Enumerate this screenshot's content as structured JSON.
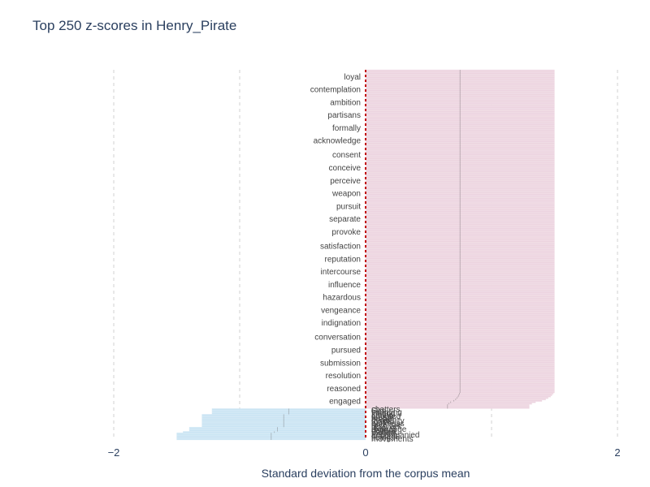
{
  "chart_data": {
    "type": "bar",
    "orientation": "horizontal",
    "title": "Top 250 z-scores in Henry_Pirate",
    "xlabel": "Standard deviation from the corpus mean",
    "ylabel": "",
    "xlim": [
      -2,
      2
    ],
    "xticks": [
      -2,
      0,
      2
    ],
    "xtick_labels": [
      "−2",
      "0",
      "2"
    ],
    "grid": true,
    "legend": "none",
    "colors": {
      "positive": "#ecd3df",
      "negative": "#c8e3f3",
      "zero_line": "#c00000",
      "text": "#2a3f5f",
      "grid": "#d0d0d0"
    },
    "positive_bars": {
      "count": 228,
      "top_labels": [
        "loyal",
        "contemplation",
        "ambition",
        "partisans",
        "formally",
        "acknowledge",
        "consent",
        "conceive",
        "perceive",
        "weapon",
        "pursuit",
        "separate",
        "provoke",
        "satisfaction",
        "reputation",
        "intercourse",
        "influence",
        "hazardous",
        "vengeance",
        "indignation",
        "conversation",
        "pursued",
        "submission",
        "resolution",
        "reasoned",
        "engaged"
      ],
      "values": [
        1.5,
        1.5,
        1.5,
        1.5,
        1.5,
        1.5,
        1.5,
        1.5,
        1.5,
        1.5,
        1.5,
        1.5,
        1.5,
        1.5,
        1.5,
        1.5,
        1.5,
        1.5,
        1.5,
        1.5,
        1.5,
        1.5,
        1.5,
        1.5,
        1.5,
        1.5,
        1.5,
        1.5,
        1.5,
        1.5,
        1.5,
        1.5,
        1.5,
        1.5,
        1.5,
        1.5,
        1.5,
        1.5,
        1.5,
        1.5,
        1.5,
        1.5,
        1.5,
        1.5,
        1.5,
        1.5,
        1.5,
        1.5,
        1.5,
        1.5,
        1.5,
        1.5,
        1.5,
        1.5,
        1.5,
        1.5,
        1.5,
        1.5,
        1.5,
        1.5,
        1.5,
        1.5,
        1.5,
        1.5,
        1.5,
        1.5,
        1.5,
        1.5,
        1.5,
        1.5,
        1.5,
        1.5,
        1.5,
        1.5,
        1.5,
        1.5,
        1.5,
        1.5,
        1.5,
        1.5,
        1.5,
        1.5,
        1.5,
        1.5,
        1.5,
        1.5,
        1.5,
        1.5,
        1.5,
        1.5,
        1.5,
        1.5,
        1.5,
        1.5,
        1.5,
        1.5,
        1.5,
        1.5,
        1.5,
        1.5,
        1.5,
        1.5,
        1.5,
        1.5,
        1.5,
        1.5,
        1.5,
        1.5,
        1.5,
        1.5,
        1.5,
        1.5,
        1.5,
        1.5,
        1.5,
        1.5,
        1.5,
        1.5,
        1.5,
        1.5,
        1.5,
        1.5,
        1.5,
        1.5,
        1.5,
        1.5,
        1.5,
        1.5,
        1.5,
        1.5,
        1.5,
        1.5,
        1.5,
        1.5,
        1.5,
        1.5,
        1.5,
        1.5,
        1.5,
        1.5,
        1.5,
        1.5,
        1.5,
        1.5,
        1.5,
        1.5,
        1.5,
        1.5,
        1.5,
        1.5,
        1.5,
        1.5,
        1.5,
        1.5,
        1.5,
        1.5,
        1.5,
        1.5,
        1.5,
        1.5,
        1.5,
        1.5,
        1.5,
        1.5,
        1.5,
        1.5,
        1.5,
        1.5,
        1.5,
        1.5,
        1.5,
        1.5,
        1.5,
        1.5,
        1.5,
        1.5,
        1.5,
        1.5,
        1.5,
        1.5,
        1.5,
        1.5,
        1.5,
        1.5,
        1.5,
        1.5,
        1.5,
        1.5,
        1.5,
        1.5,
        1.5,
        1.5,
        1.5,
        1.5,
        1.5,
        1.5,
        1.5,
        1.5,
        1.5,
        1.5,
        1.5,
        1.5,
        1.5,
        1.5,
        1.5,
        1.5,
        1.5,
        1.5,
        1.5,
        1.5,
        1.5,
        1.5,
        1.5,
        1.5,
        1.5,
        1.5,
        1.5,
        1.5,
        1.5,
        1.5,
        1.5,
        1.5,
        1.5,
        1.5,
        1.5,
        1.5,
        1.5,
        1.49,
        1.48,
        1.47,
        1.45,
        1.43,
        1.4,
        1.35,
        1.32,
        1.3,
        1.3,
        1.3
      ]
    },
    "negative_bars": {
      "count": 22,
      "labels": [
        "chatters",
        "Sirs",
        "vaunting",
        "fleeing",
        "Lifting",
        "adopted",
        "fanny",
        "breath",
        "cynicality",
        "toasts",
        "darkness",
        "revenge",
        "resolves",
        "lilac",
        "exchange",
        "cedars",
        "Baffled",
        "thrilled",
        "accompanied",
        "cravens",
        "tidings",
        "movements"
      ],
      "values": [
        -1.22,
        -1.22,
        -1.22,
        -1.22,
        -1.3,
        -1.3,
        -1.3,
        -1.3,
        -1.3,
        -1.3,
        -1.3,
        -1.3,
        -1.3,
        -1.4,
        -1.4,
        -1.4,
        -1.45,
        -1.5,
        -1.5,
        -1.5,
        -1.5,
        -1.5
      ]
    }
  }
}
